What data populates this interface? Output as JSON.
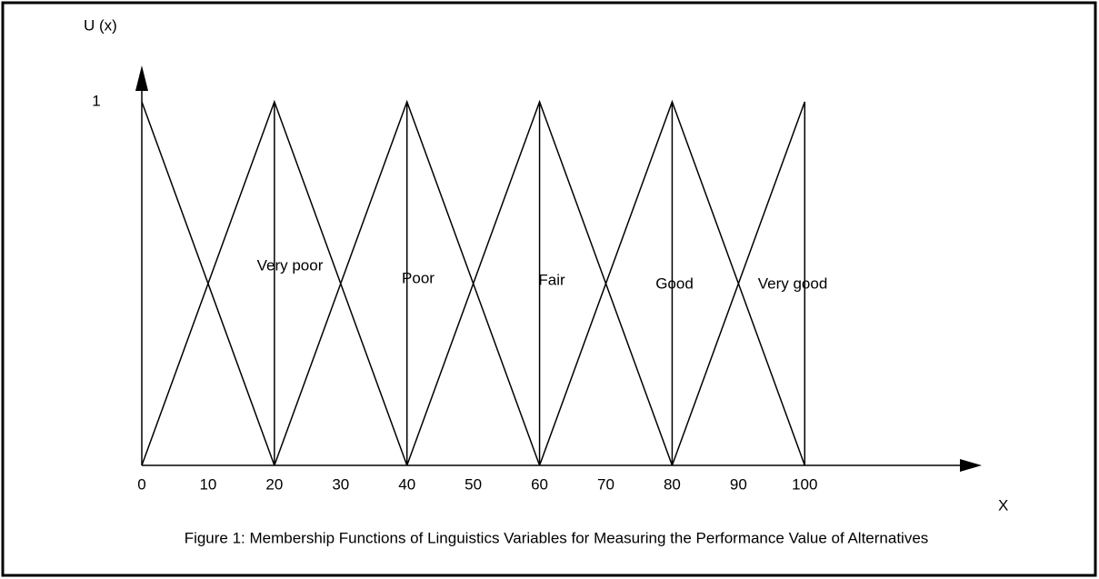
{
  "chart_data": {
    "type": "line",
    "ylabel": "U (x)",
    "xlabel": "X",
    "caption": "Figure 1: Membership Functions of Linguistics Variables for Measuring the Performance Value of Alternatives",
    "xlim": [
      0,
      126.7
    ],
    "ylim": [
      0,
      1.1
    ],
    "xticks": [
      0,
      10,
      20,
      30,
      40,
      50,
      60,
      70,
      80,
      90,
      100
    ],
    "yticks": [
      1
    ],
    "color": "#000000",
    "series": [
      {
        "x": [
          0,
          20
        ],
        "values": [
          1,
          0
        ]
      },
      {
        "x": [
          0,
          20,
          40
        ],
        "values": [
          0,
          1,
          0
        ]
      },
      {
        "x": [
          20,
          40,
          60
        ],
        "values": [
          0,
          1,
          0
        ]
      },
      {
        "x": [
          40,
          60,
          80
        ],
        "values": [
          0,
          1,
          0
        ]
      },
      {
        "x": [
          60,
          80,
          100
        ],
        "values": [
          0,
          1,
          0
        ]
      },
      {
        "x": [
          80,
          100,
          100
        ],
        "values": [
          0,
          1,
          0
        ]
      },
      {
        "x": [
          20,
          20
        ],
        "values": [
          0,
          1
        ]
      },
      {
        "x": [
          40,
          40
        ],
        "values": [
          0,
          1
        ]
      },
      {
        "x": [
          60,
          60
        ],
        "values": [
          0,
          1
        ]
      },
      {
        "x": [
          80,
          80
        ],
        "values": [
          0,
          1
        ]
      }
    ],
    "annotations": [
      "Very poor",
      "Poor",
      "Fair",
      "Good",
      "Very good"
    ]
  }
}
